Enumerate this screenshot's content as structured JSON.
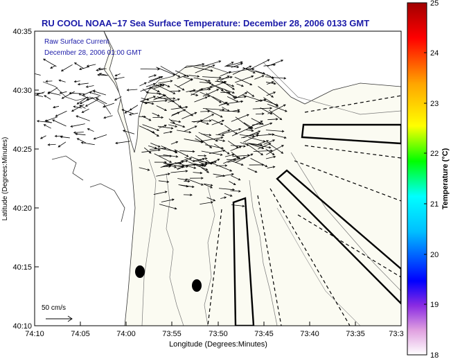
{
  "header": {
    "title": "RU COOL  NOAA−17  Sea Surface Temperature:  December 28, 2006 0133 GMT"
  },
  "map": {
    "legend": {
      "line1": "Raw Surface Current",
      "line2": "December 28, 2006 01:00 GMT"
    },
    "scale_label": "50 cm/s",
    "y_axis": {
      "label": "Latitude (Degrees:Minutes)",
      "ticks": [
        "40:35",
        "40:30",
        "40:25",
        "40:20",
        "40:15",
        "40:10"
      ]
    },
    "x_axis": {
      "label": "Longitude (Degrees:Minutes)",
      "ticks": [
        "74:10",
        "74:05",
        "74:00",
        "73:55",
        "73:50",
        "73:45",
        "73:40",
        "73:35",
        "73:3"
      ]
    },
    "colors": {
      "title": "#1a1aa8",
      "legend": "#1a1aa8",
      "land": "#ffffff",
      "water": "#fbfbf2"
    }
  },
  "colorbar": {
    "label": "Temperature (°C)",
    "ticks": [
      "25",
      "24",
      "23",
      "22",
      "21",
      "20",
      "19",
      "18"
    ],
    "range": [
      18,
      25
    ]
  }
}
